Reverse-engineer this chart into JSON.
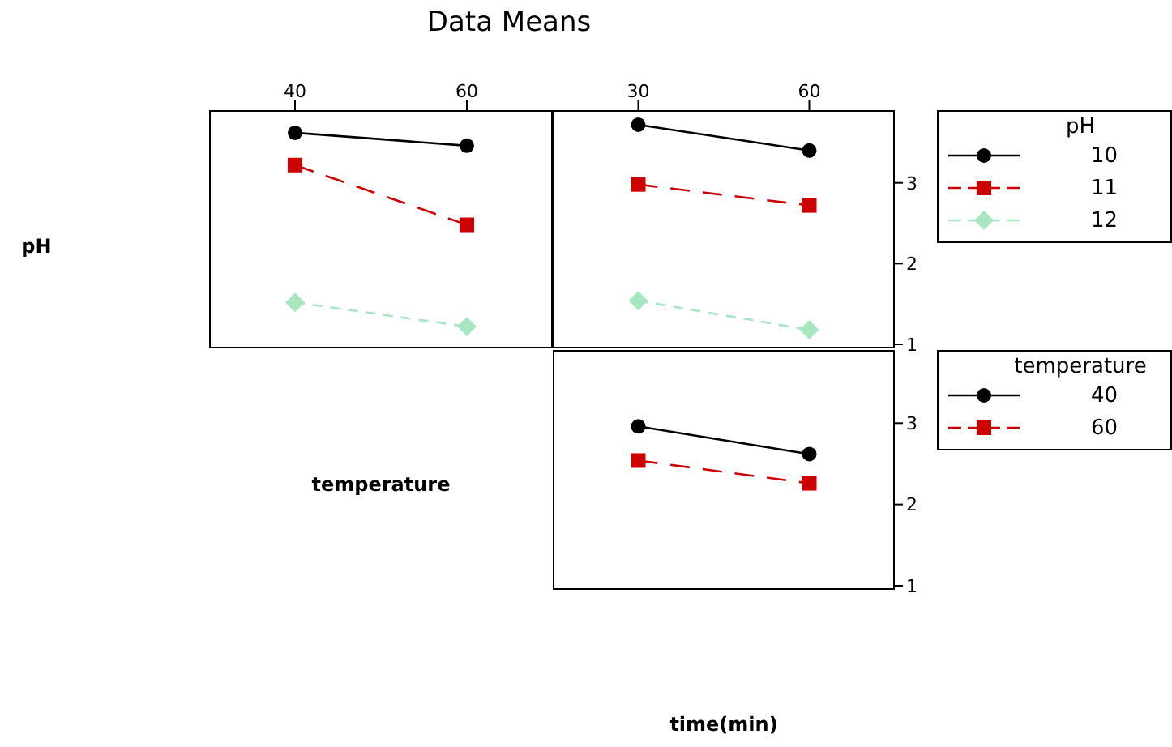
{
  "chart_data": [
    {
      "type": "line",
      "title": "Data Means",
      "ylabel": "pH",
      "categories": [
        "40",
        "60"
      ],
      "ylim": [
        0.95,
        3.9
      ],
      "yticks": [
        1,
        2,
        3
      ],
      "tick_labels": "x",
      "series": [
        {
          "color": "#000000",
          "marker": "circle",
          "line_style": "solid",
          "values": [
            3.62,
            3.46
          ]
        },
        {
          "color": "#cc0000",
          "marker": "square",
          "line_style": "dashed",
          "values": [
            3.22,
            2.48
          ]
        },
        {
          "color": "#a8e6bf",
          "marker": "diamond",
          "line_style": "dotted",
          "values": [
            1.52,
            1.22
          ]
        }
      ]
    },
    {
      "type": "line",
      "categories": [
        "30",
        "60"
      ],
      "ylim": [
        0.95,
        3.9
      ],
      "yticks": [
        1,
        2,
        3
      ],
      "legend": "right",
      "legend_title": "pH",
      "series": [
        {
          "name": "10",
          "color": "#000000",
          "marker": "circle",
          "line_style": "solid",
          "values": [
            3.72,
            3.4
          ]
        },
        {
          "name": "11",
          "color": "#cc0000",
          "marker": "square",
          "line_style": "dashed",
          "values": [
            2.98,
            2.72
          ]
        },
        {
          "name": "12",
          "color": "#a8e6bf",
          "marker": "diamond",
          "line_style": "dotted",
          "values": [
            1.54,
            1.18
          ]
        }
      ]
    },
    {
      "type": "line",
      "ylabel": "temperature",
      "xlabel": "time(min)",
      "categories": [
        null,
        null
      ],
      "ylim": [
        0.95,
        3.9
      ],
      "yticks": [
        1,
        2,
        3
      ],
      "tick_labels": "y",
      "legend": "right",
      "legend_title": "temperature",
      "series": [
        {
          "name": "40",
          "color": "#000000",
          "marker": "circle",
          "line_style": "solid",
          "values": [
            2.96,
            2.62
          ]
        },
        {
          "name": "60",
          "color": "#cc0000",
          "marker": "square",
          "line_style": "dashed",
          "values": [
            2.54,
            2.26
          ]
        }
      ]
    }
  ]
}
